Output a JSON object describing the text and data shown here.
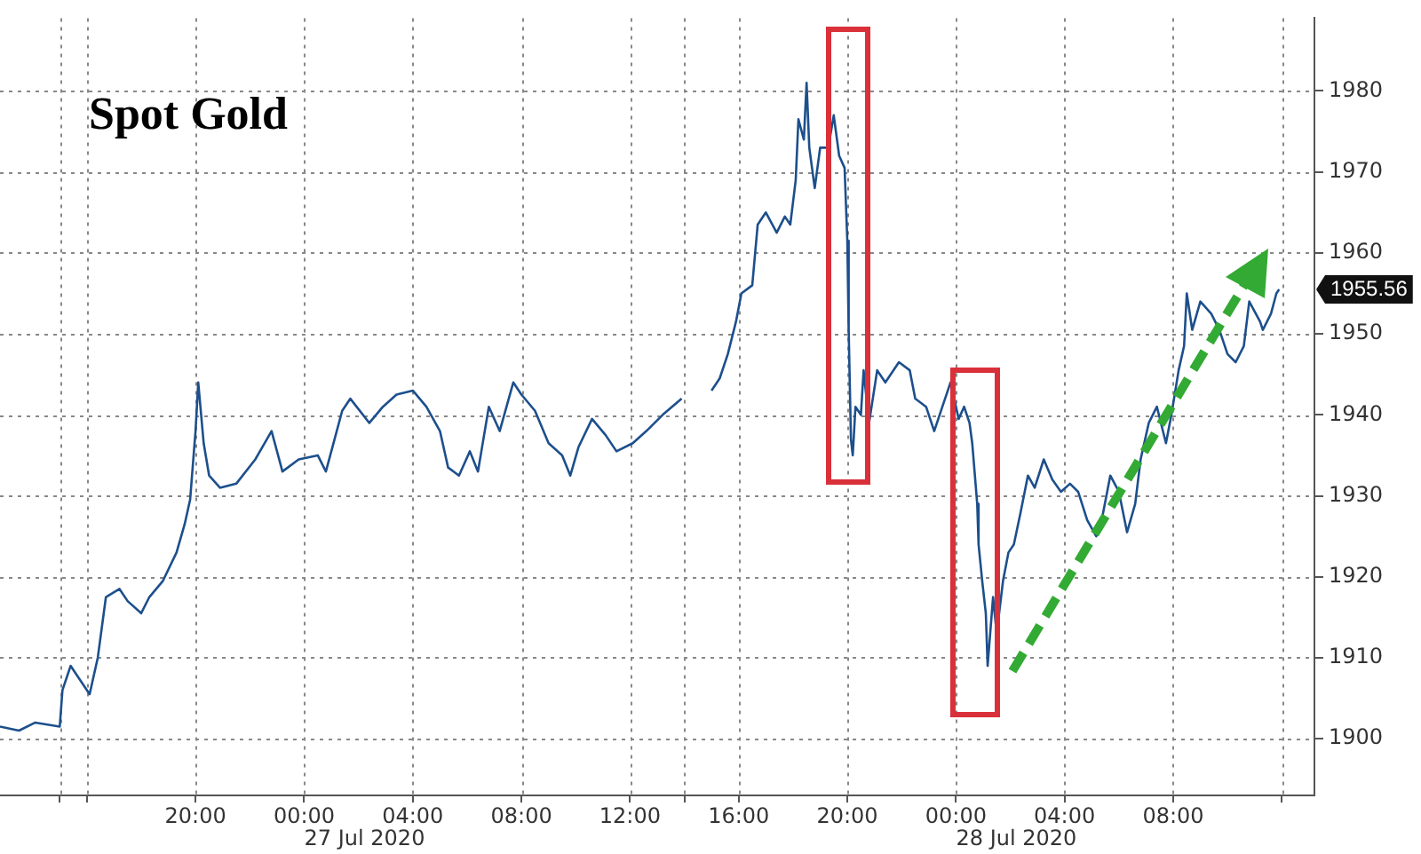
{
  "chart_data": {
    "type": "line",
    "title": "Spot Gold",
    "x": [
      "2020-07-26T12:48",
      "2020-07-26T13:30",
      "2020-07-26T14:06",
      "2020-07-26T15:00",
      "2020-07-26T15:06",
      "2020-07-26T15:24",
      "2020-07-26T16:06",
      "2020-07-26T16:24",
      "2020-07-26T16:42",
      "2020-07-26T17:12",
      "2020-07-26T17:30",
      "2020-07-26T18:00",
      "2020-07-26T18:18",
      "2020-07-26T18:48",
      "2020-07-26T19:18",
      "2020-07-26T19:36",
      "2020-07-26T19:48",
      "2020-07-26T20:00",
      "2020-07-26T20:06",
      "2020-07-26T20:18",
      "2020-07-26T20:30",
      "2020-07-26T20:54",
      "2020-07-26T21:30",
      "2020-07-26T22:12",
      "2020-07-26T22:48",
      "2020-07-26T23:12",
      "2020-07-26T23:48",
      "2020-07-27T00:30",
      "2020-07-27T00:48",
      "2020-07-27T01:24",
      "2020-07-27T01:42",
      "2020-07-27T02:24",
      "2020-07-27T02:54",
      "2020-07-27T03:24",
      "2020-07-27T04:00",
      "2020-07-27T04:30",
      "2020-07-27T05:00",
      "2020-07-27T05:18",
      "2020-07-27T05:42",
      "2020-07-27T06:06",
      "2020-07-27T06:24",
      "2020-07-27T06:48",
      "2020-07-27T07:12",
      "2020-07-27T07:42",
      "2020-07-27T08:00",
      "2020-07-27T08:30",
      "2020-07-27T09:00",
      "2020-07-27T09:30",
      "2020-07-27T09:48",
      "2020-07-27T10:06",
      "2020-07-27T10:36",
      "2020-07-27T11:06",
      "2020-07-27T11:30",
      "2020-07-27T12:06",
      "2020-07-27T12:36",
      "2020-07-27T13:12",
      "2020-07-27T13:54",
      "2020-07-27T14:30",
      "2020-07-27T15:00",
      "2020-07-27T15:18",
      "2020-07-27T15:36",
      "2020-07-27T15:54",
      "2020-07-27T16:06",
      "2020-07-27T16:30",
      "2020-07-27T16:42",
      "2020-07-27T17:00",
      "2020-07-27T17:24",
      "2020-07-27T17:42",
      "2020-07-27T17:54",
      "2020-07-27T18:06",
      "2020-07-27T18:12",
      "2020-07-27T18:24",
      "2020-07-27T18:30",
      "2020-07-27T18:36",
      "2020-07-27T18:48",
      "2020-07-27T19:00",
      "2020-07-27T19:18",
      "2020-07-27T19:30",
      "2020-07-27T19:42",
      "2020-07-27T19:54",
      "2020-07-27T20:00",
      "2020-07-27T20:03",
      "2020-07-27T20:08",
      "2020-07-27T20:12",
      "2020-07-27T20:18",
      "2020-07-27T20:30",
      "2020-07-27T20:36",
      "2020-07-27T20:48",
      "2020-07-27T21:06",
      "2020-07-27T21:24",
      "2020-07-27T21:54",
      "2020-07-27T22:18",
      "2020-07-27T22:30",
      "2020-07-27T22:54",
      "2020-07-27T23:12",
      "2020-07-27T23:30",
      "2020-07-27T23:48",
      "2020-07-28T00:06",
      "2020-07-28T00:18",
      "2020-07-28T00:30",
      "2020-07-28T00:36",
      "2020-07-28T00:47",
      "2020-07-28T00:50",
      "2020-07-28T00:58",
      "2020-07-28T01:06",
      "2020-07-28T01:10",
      "2020-07-28T01:22",
      "2020-07-28T01:30",
      "2020-07-28T01:44",
      "2020-07-28T01:56",
      "2020-07-28T02:08",
      "2020-07-28T02:23",
      "2020-07-28T02:39",
      "2020-07-28T02:54",
      "2020-07-28T03:14",
      "2020-07-28T03:33",
      "2020-07-28T03:52",
      "2020-07-28T04:12",
      "2020-07-28T04:30",
      "2020-07-28T04:50",
      "2020-07-28T05:10",
      "2020-07-28T05:22",
      "2020-07-28T05:41",
      "2020-07-28T06:00",
      "2020-07-28T06:18",
      "2020-07-28T06:36",
      "2020-07-28T06:48",
      "2020-07-28T07:06",
      "2020-07-28T07:24",
      "2020-07-28T07:44",
      "2020-07-28T07:56",
      "2020-07-28T08:12",
      "2020-07-28T08:24",
      "2020-07-28T08:30",
      "2020-07-28T08:42",
      "2020-07-28T09:00",
      "2020-07-28T09:24",
      "2020-07-28T09:42",
      "2020-07-28T10:00",
      "2020-07-28T10:18",
      "2020-07-28T10:36",
      "2020-07-28T10:48",
      "2020-07-28T11:12",
      "2020-07-28T11:18",
      "2020-07-28T11:36",
      "2020-07-28T11:48",
      "2020-07-28T11:54"
    ],
    "series": [
      {
        "color": "#1d4f8c",
        "values": [
          1901.5,
          1901,
          1902,
          1901.5,
          1906,
          1909,
          1905.5,
          1910,
          1917.5,
          1918.5,
          1917,
          1915.5,
          1917.5,
          1919.5,
          1923,
          1926.5,
          1929.5,
          1938,
          1944,
          1936.5,
          1932.5,
          1931,
          1931.5,
          1934.5,
          1938,
          1933,
          1934.5,
          1935,
          1933,
          1940.5,
          1942,
          1939,
          1941,
          1942.5,
          1943,
          1941,
          1938,
          1933.5,
          1932.5,
          1935.5,
          1933,
          1941,
          1938,
          1944,
          1942.5,
          1940.5,
          1936.5,
          1935,
          1932.5,
          1936,
          1939.5,
          1937.5,
          1935.5,
          1936.5,
          1938,
          1940,
          1942,
          null,
          1943,
          1944.5,
          1947.5,
          1951.5,
          1955,
          1956,
          1963.5,
          1965,
          1962.5,
          1964.5,
          1963.5,
          1969,
          1976.5,
          1974,
          1981,
          1973,
          1968,
          1973,
          1973,
          1977,
          1972,
          1970.5,
          1961.5,
          1950.5,
          1937,
          1935,
          1941,
          1940,
          1945.5,
          1939,
          1945.5,
          1944,
          1946.5,
          1945.5,
          1942,
          1941,
          1938,
          1941,
          1944,
          1939.5,
          1941,
          1939,
          1936.5,
          1929,
          1924,
          1919.5,
          1915.5,
          1909,
          1917.5,
          1913,
          1919.5,
          1923,
          1924,
          1928,
          1932.5,
          1931,
          1934.5,
          1932,
          1930.5,
          1931.5,
          1930.5,
          1927,
          1925,
          1927,
          1932.5,
          1930.5,
          1925.5,
          1929,
          1934.5,
          1939,
          1941,
          1936.5,
          1940,
          1945.5,
          1948.5,
          1955,
          1950.5,
          1954,
          1952.5,
          1950.5,
          1947.5,
          1946.5,
          1948.5,
          1954,
          1951.5,
          1950.5,
          1952.5,
          1955,
          1955.5
        ]
      }
    ],
    "xlim": [
      "2020-07-26T12:48",
      "2020-07-28T13:12"
    ],
    "xticks": [
      {
        "value": "2020-07-26T15:00",
        "label": null
      },
      {
        "value": "2020-07-26T16:00",
        "label": null
      },
      {
        "value": "2020-07-26T20:00",
        "label": "20:00"
      },
      {
        "value": "2020-07-27T00:00",
        "label": "00:00"
      },
      {
        "value": "2020-07-27T04:00",
        "label": "04:00"
      },
      {
        "value": "2020-07-27T08:00",
        "label": "08:00"
      },
      {
        "value": "2020-07-27T12:00",
        "label": "12:00"
      },
      {
        "value": "2020-07-27T14:00",
        "label": null
      },
      {
        "value": "2020-07-27T16:00",
        "label": "16:00"
      },
      {
        "value": "2020-07-27T20:00",
        "label": "20:00"
      },
      {
        "value": "2020-07-28T00:00",
        "label": "00:00"
      },
      {
        "value": "2020-07-28T04:00",
        "label": "04:00"
      },
      {
        "value": "2020-07-28T08:00",
        "label": "08:00"
      },
      {
        "value": "2020-07-28T12:00",
        "label": null
      }
    ],
    "ylim": [
      1893,
      1989
    ],
    "yticks": [
      1900,
      1910,
      1920,
      1930,
      1940,
      1950,
      1960,
      1970,
      1980
    ],
    "grid": true,
    "annotations": [
      "27 Jul 2020",
      "28 Jul 2020",
      "1955.56"
    ]
  }
}
